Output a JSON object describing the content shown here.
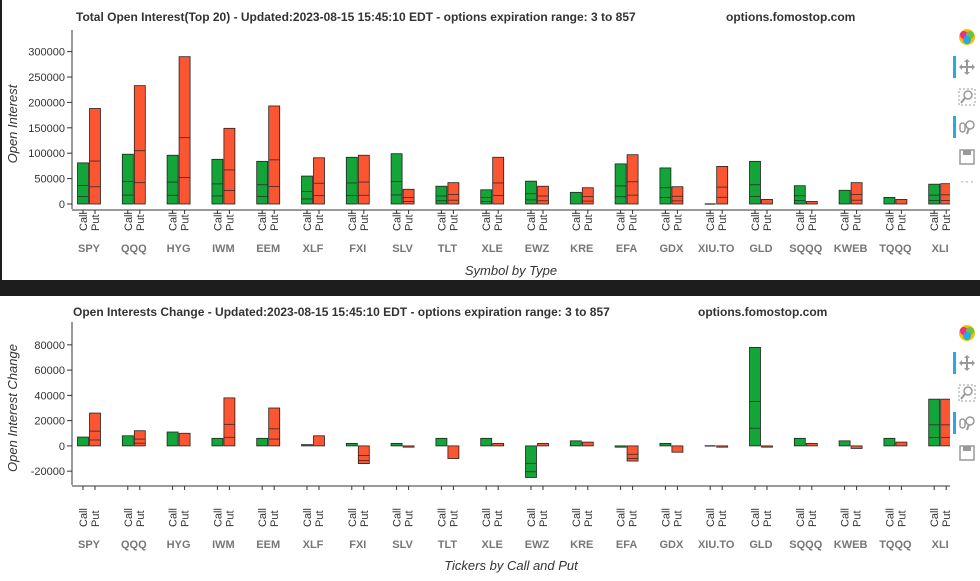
{
  "colors": {
    "call": "#13a538",
    "put": "#fb5532",
    "axis": "#333333",
    "bg": "#ffffff",
    "divider": "#1d1d1d",
    "toolbar_active": "#26aae1"
  },
  "chart_data": [
    {
      "type": "bar",
      "title": "Total Open Interest(Top 20) - Updated:2023-08-15 15:45:10 EDT - options expiration range: 3 to 857",
      "source": "options.fomostop.com",
      "xlabel": "Symbol by Type",
      "ylabel": "Open Interest",
      "ylim": [
        0,
        315000
      ],
      "yticks": [
        0,
        50000,
        100000,
        150000,
        200000,
        250000,
        300000
      ],
      "ytick_labels": [
        "0",
        "50000",
        "100000",
        "150000",
        "200000",
        "250000",
        "300000"
      ],
      "subcategories": [
        "Call",
        "Put"
      ],
      "categories": [
        "SPY",
        "QQQ",
        "HYG",
        "IWM",
        "EEM",
        "XLF",
        "FXI",
        "SLV",
        "TLT",
        "XLE",
        "EWZ",
        "KRE",
        "EFA",
        "GDX",
        "XIU.TO",
        "GLD",
        "SQQQ",
        "KWEB",
        "TQQQ",
        "XLI"
      ],
      "series": [
        {
          "name": "Call",
          "values": [
            81000,
            98000,
            96000,
            88000,
            84000,
            55000,
            92000,
            99000,
            35000,
            28000,
            45000,
            23000,
            79000,
            71000,
            0,
            84000,
            36000,
            27000,
            13000,
            39000
          ]
        },
        {
          "name": "Put",
          "values": [
            188000,
            233000,
            290000,
            149000,
            193000,
            91000,
            96000,
            29000,
            42000,
            92000,
            35000,
            32000,
            97000,
            34000,
            74000,
            9000,
            5000,
            42000,
            9000,
            40000
          ]
        }
      ]
    },
    {
      "type": "bar",
      "title": "Open Interests Change - Updated:2023-08-15 15:45:10 EDT - options expiration range: 3 to 857",
      "source": "options.fomostop.com",
      "xlabel": "Tickers by Call and Put",
      "ylabel": "Open Interest Change",
      "ylim": [
        -27000,
        87000
      ],
      "yticks": [
        -20000,
        0,
        20000,
        40000,
        60000,
        80000
      ],
      "ytick_labels": [
        "-20000",
        "0",
        "20000",
        "40000",
        "60000",
        "80000"
      ],
      "subcategories": [
        "Call",
        "Put"
      ],
      "categories": [
        "SPY",
        "QQQ",
        "HYG",
        "IWM",
        "EEM",
        "XLF",
        "FXI",
        "SLV",
        "TLT",
        "XLE",
        "EWZ",
        "KRE",
        "EFA",
        "GDX",
        "XIU.TO",
        "GLD",
        "SQQQ",
        "KWEB",
        "TQQQ",
        "XLI"
      ],
      "series": [
        {
          "name": "Call",
          "values": [
            7000,
            8000,
            11000,
            6000,
            6000,
            1000,
            2000,
            2000,
            6000,
            6000,
            -25000,
            4000,
            -1000,
            2000,
            0,
            78000,
            6000,
            4000,
            6000,
            37000
          ]
        },
        {
          "name": "Put",
          "values": [
            26000,
            12000,
            10000,
            38000,
            30000,
            8000,
            -14000,
            -1000,
            -10000,
            2000,
            2000,
            3000,
            -12000,
            -5000,
            -1000,
            -1000,
            2000,
            -2000,
            3000,
            37000
          ]
        }
      ]
    }
  ],
  "toolbar": {
    "tools": [
      "bokeh-logo-icon",
      "pan-icon",
      "box-zoom-icon",
      "wheel-zoom-icon",
      "save-icon"
    ],
    "more": "···"
  }
}
